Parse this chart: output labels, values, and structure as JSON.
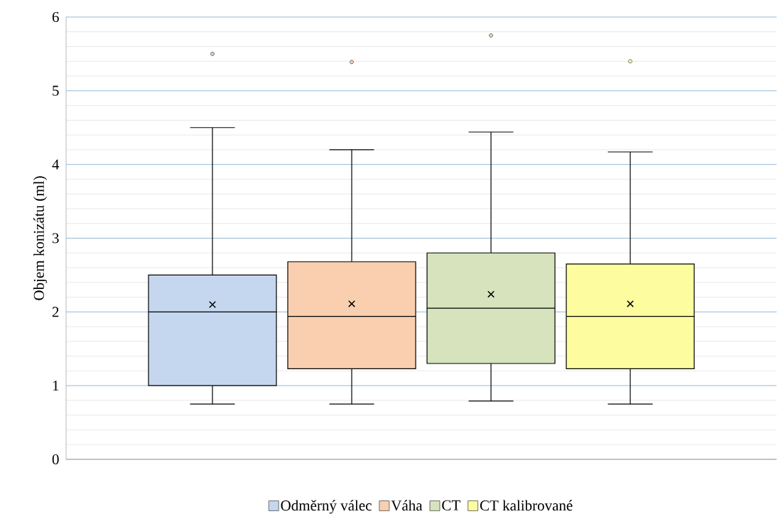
{
  "chart_data": {
    "type": "box",
    "categories": [
      null
    ],
    "ylabel": "Objem konizátu (ml)",
    "ylim": [
      0,
      6
    ],
    "yticks": [
      0,
      1,
      2,
      3,
      4,
      5,
      6
    ],
    "grid": "y",
    "legend": "bottom",
    "series": [
      {
        "name": "Odměrný válec",
        "color": "#c5d7ee",
        "boxes": [
          {
            "low": 0.75,
            "q1": 1.0,
            "median": 2.0,
            "q3": 2.5,
            "high": 4.5,
            "mean": 2.1,
            "outliers": [
              5.5
            ]
          }
        ]
      },
      {
        "name": "Váha",
        "color": "#f9cfb0",
        "boxes": [
          {
            "low": 0.75,
            "q1": 1.23,
            "median": 1.94,
            "q3": 2.68,
            "high": 4.2,
            "mean": 2.11,
            "outliers": [
              5.39
            ]
          }
        ]
      },
      {
        "name": "CT",
        "color": "#d6e3bd",
        "boxes": [
          {
            "low": 0.79,
            "q1": 1.3,
            "median": 2.05,
            "q3": 2.8,
            "high": 4.44,
            "mean": 2.24,
            "outliers": [
              5.75
            ]
          }
        ]
      },
      {
        "name": "CT kalibrované",
        "color": "#fdfda0",
        "boxes": [
          {
            "low": 0.75,
            "q1": 1.23,
            "median": 1.94,
            "q3": 2.65,
            "high": 4.17,
            "mean": 2.11,
            "outliers": [
              5.4
            ]
          }
        ]
      }
    ]
  }
}
